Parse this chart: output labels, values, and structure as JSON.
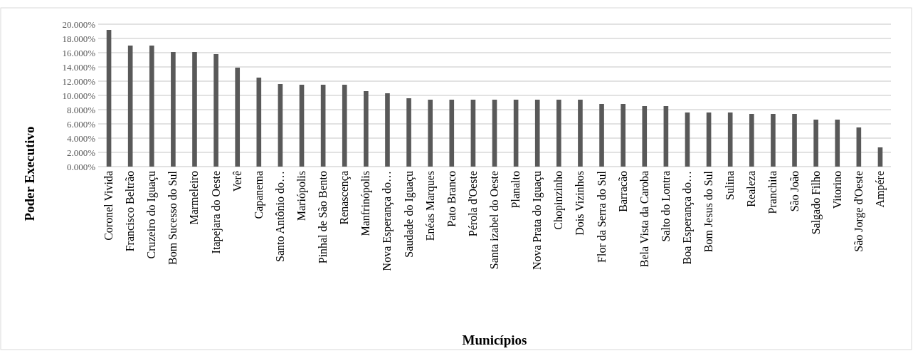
{
  "chart_data": {
    "type": "bar",
    "xlabel": "Municípios",
    "ylabel": "Poder Executivo",
    "categories": [
      "Coronel Vivida",
      "Francisco Beltrão",
      "Cruzeiro do Iguaçu",
      "Bom Sucesso do Sul",
      "Marmeleiro",
      "Itapejara do Oeste",
      "Verê",
      "Capanema",
      "Santo Antônio do…",
      "Mariópolis",
      "Pinhal de São Bento",
      "Renascença",
      "Manfrinópolis",
      "Nova Esperança do…",
      "Saudade do Iguaçu",
      "Enéas Marques",
      "Pato Branco",
      "Pérola d'Oeste",
      "Santa izabel do Oeste",
      "Planalto",
      "Nova Prata do Iguaçu",
      "Chopinzinho",
      "Dois Vizinhos",
      "Flor da Serra do Sul",
      "Barracão",
      "Bela Vista da Caroba",
      "Salto do Lontra",
      "Boa Esperança do…",
      "Bom Jesus do Sul",
      "Sulina",
      "Realeza",
      "Pranchita",
      "São João",
      "Salgado Filho",
      "Vitorino",
      "São Jorge d'Oeste",
      "Ampére"
    ],
    "values": [
      19.2,
      17.0,
      17.0,
      16.1,
      16.1,
      15.8,
      13.9,
      12.5,
      11.6,
      11.5,
      11.5,
      11.5,
      10.6,
      10.3,
      9.6,
      9.4,
      9.4,
      9.4,
      9.4,
      9.4,
      9.4,
      9.4,
      9.4,
      8.8,
      8.8,
      8.5,
      8.5,
      7.6,
      7.6,
      7.6,
      7.4,
      7.4,
      7.4,
      6.6,
      6.6,
      5.5,
      2.7
    ],
    "color": "#595959",
    "ylim": [
      0,
      20
    ],
    "yticks": [
      {
        "value": 0,
        "label": "0.000%"
      },
      {
        "value": 2,
        "label": "2.000%"
      },
      {
        "value": 4,
        "label": "4.000%"
      },
      {
        "value": 6,
        "label": "6.000%"
      },
      {
        "value": 8,
        "label": "8.000%"
      },
      {
        "value": 10,
        "label": "10.000%"
      },
      {
        "value": 12,
        "label": "12.000%"
      },
      {
        "value": 14,
        "label": "14.000%"
      },
      {
        "value": 16,
        "label": "16.000%"
      },
      {
        "value": 18,
        "label": "18.000%"
      },
      {
        "value": 20,
        "label": "20.000%"
      }
    ],
    "grid": "y"
  }
}
